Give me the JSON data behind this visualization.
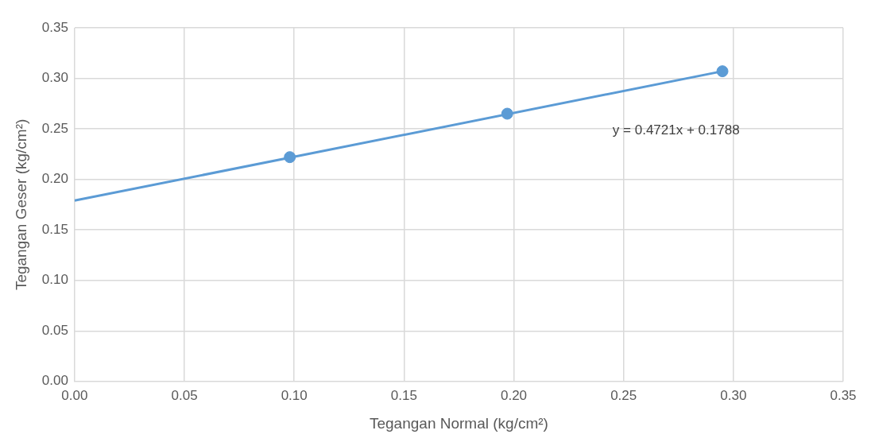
{
  "chart_data": {
    "type": "scatter",
    "xlabel": "Tegangan Normal (kg/cm²)",
    "ylabel": "Tegangan Geser (kg/cm²)",
    "series": [
      {
        "type": "scatter",
        "color": "#5b9bd5",
        "x": [
          0.098,
          0.197,
          0.295
        ],
        "values": [
          0.222,
          0.265,
          0.307
        ]
      },
      {
        "type": "line",
        "color": "#5b9bd5",
        "x": [
          0,
          0.295
        ],
        "values": [
          0.179,
          0.307
        ],
        "marker": "none"
      }
    ],
    "annotations": [
      "y = 0.4721x + 0.1788"
    ],
    "xlim": [
      0,
      0.35
    ],
    "ylim": [
      0,
      0.35
    ],
    "xticks": [
      {
        "value": 0,
        "label": "0.00"
      },
      {
        "value": 0.05,
        "label": "0.05"
      },
      {
        "value": 0.1,
        "label": "0.10"
      },
      {
        "value": 0.15,
        "label": "0.15"
      },
      {
        "value": 0.2,
        "label": "0.20"
      },
      {
        "value": 0.25,
        "label": "0.25"
      },
      {
        "value": 0.3,
        "label": "0.30"
      },
      {
        "value": 0.35,
        "label": "0.35"
      }
    ],
    "yticks": [
      {
        "value": 0,
        "label": "0.00"
      },
      {
        "value": 0.05,
        "label": "0.05"
      },
      {
        "value": 0.1,
        "label": "0.10"
      },
      {
        "value": 0.15,
        "label": "0.15"
      },
      {
        "value": 0.2,
        "label": "0.20"
      },
      {
        "value": 0.25,
        "label": "0.25"
      },
      {
        "value": 0.3,
        "label": "0.30"
      },
      {
        "value": 0.35,
        "label": "0.35"
      }
    ],
    "grid": true,
    "legend": false,
    "marker": "circle"
  }
}
